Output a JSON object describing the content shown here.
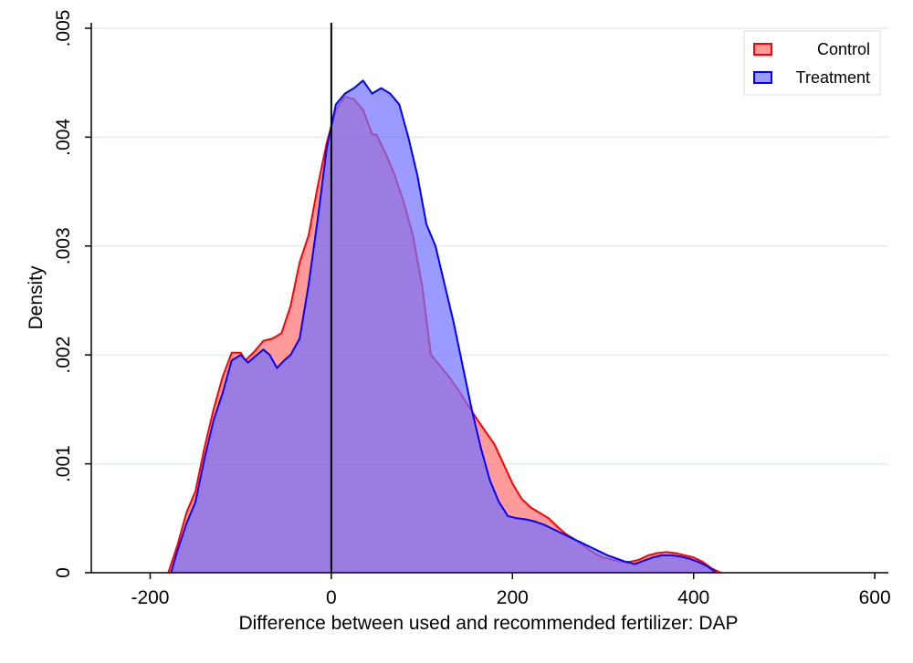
{
  "chart_data": {
    "type": "area",
    "xlabel": "Difference between used and recommended fertilizer: DAP",
    "ylabel": "Density",
    "xlim": [
      -265,
      615
    ],
    "ylim": [
      0,
      0.00505
    ],
    "x_ticks": [
      -200,
      0,
      200,
      400,
      600
    ],
    "x_tick_labels": [
      "-200",
      "0",
      "200",
      "400",
      "600"
    ],
    "y_ticks": [
      0,
      0.001,
      0.002,
      0.003,
      0.004,
      0.005
    ],
    "y_tick_labels": [
      "0",
      ".001",
      ".002",
      ".003",
      ".004",
      ".005"
    ],
    "grid": "horizontal",
    "legend_position": "top-right",
    "reference_line_x": 0,
    "series": [
      {
        "name": "Control",
        "line_color": "#ff0000",
        "fill_color": "#ff6f6f",
        "fill_opacity": 0.7,
        "points": [
          [
            -180,
            0
          ],
          [
            -170,
            0.00025
          ],
          [
            -160,
            0.00055
          ],
          [
            -150,
            0.00075
          ],
          [
            -140,
            0.00115
          ],
          [
            -130,
            0.0015
          ],
          [
            -120,
            0.0018
          ],
          [
            -110,
            0.00202
          ],
          [
            -100,
            0.00202
          ],
          [
            -95,
            0.00195
          ],
          [
            -85,
            0.00203
          ],
          [
            -75,
            0.00213
          ],
          [
            -65,
            0.00215
          ],
          [
            -55,
            0.0022
          ],
          [
            -45,
            0.00245
          ],
          [
            -35,
            0.00285
          ],
          [
            -25,
            0.0031
          ],
          [
            -15,
            0.00355
          ],
          [
            -5,
            0.00395
          ],
          [
            5,
            0.00425
          ],
          [
            15,
            0.00437
          ],
          [
            25,
            0.00435
          ],
          [
            35,
            0.00425
          ],
          [
            45,
            0.00403
          ],
          [
            50,
            0.00402
          ],
          [
            60,
            0.00385
          ],
          [
            70,
            0.00365
          ],
          [
            80,
            0.0034
          ],
          [
            90,
            0.0031
          ],
          [
            100,
            0.00265
          ],
          [
            110,
            0.002
          ],
          [
            120,
            0.0019
          ],
          [
            130,
            0.0018
          ],
          [
            140,
            0.00168
          ],
          [
            150,
            0.00155
          ],
          [
            160,
            0.00142
          ],
          [
            170,
            0.0013
          ],
          [
            180,
            0.00118
          ],
          [
            190,
            0.001
          ],
          [
            200,
            0.00082
          ],
          [
            210,
            0.00068
          ],
          [
            220,
            0.0006
          ],
          [
            230,
            0.00055
          ],
          [
            240,
            0.0005
          ],
          [
            250,
            0.00042
          ],
          [
            260,
            0.00035
          ],
          [
            270,
            0.0003
          ],
          [
            280,
            0.00024
          ],
          [
            290,
            0.00018
          ],
          [
            300,
            0.00014
          ],
          [
            310,
            0.00012
          ],
          [
            320,
            0.0001
          ],
          [
            330,
            0.0001
          ],
          [
            340,
            0.00012
          ],
          [
            350,
            0.00016
          ],
          [
            360,
            0.00018
          ],
          [
            370,
            0.00019
          ],
          [
            380,
            0.00018
          ],
          [
            390,
            0.00016
          ],
          [
            400,
            0.00014
          ],
          [
            410,
            0.0001
          ],
          [
            420,
            4e-05
          ],
          [
            430,
            0
          ]
        ]
      },
      {
        "name": "Treatment",
        "line_color": "#0000ff",
        "fill_color": "#7070ff",
        "fill_opacity": 0.7,
        "points": [
          [
            -177,
            0
          ],
          [
            -170,
            0.0002
          ],
          [
            -160,
            0.00045
          ],
          [
            -150,
            0.00065
          ],
          [
            -140,
            0.00105
          ],
          [
            -130,
            0.0014
          ],
          [
            -120,
            0.00165
          ],
          [
            -110,
            0.00195
          ],
          [
            -100,
            0.002
          ],
          [
            -92,
            0.00193
          ],
          [
            -85,
            0.00198
          ],
          [
            -75,
            0.00205
          ],
          [
            -68,
            0.002
          ],
          [
            -60,
            0.00188
          ],
          [
            -52,
            0.00195
          ],
          [
            -45,
            0.002
          ],
          [
            -35,
            0.00215
          ],
          [
            -25,
            0.00265
          ],
          [
            -15,
            0.00325
          ],
          [
            -5,
            0.0039
          ],
          [
            5,
            0.0043
          ],
          [
            15,
            0.0044
          ],
          [
            25,
            0.00445
          ],
          [
            35,
            0.00452
          ],
          [
            45,
            0.0044
          ],
          [
            55,
            0.00445
          ],
          [
            65,
            0.0044
          ],
          [
            75,
            0.0043
          ],
          [
            85,
            0.004
          ],
          [
            95,
            0.00365
          ],
          [
            105,
            0.0032
          ],
          [
            115,
            0.003
          ],
          [
            125,
            0.00265
          ],
          [
            135,
            0.0023
          ],
          [
            145,
            0.0019
          ],
          [
            155,
            0.0015
          ],
          [
            165,
            0.00115
          ],
          [
            175,
            0.00085
          ],
          [
            185,
            0.00065
          ],
          [
            195,
            0.00052
          ],
          [
            205,
            0.0005
          ],
          [
            215,
            0.00049
          ],
          [
            225,
            0.00047
          ],
          [
            235,
            0.00044
          ],
          [
            245,
            0.0004
          ],
          [
            255,
            0.00036
          ],
          [
            265,
            0.00032
          ],
          [
            275,
            0.00028
          ],
          [
            285,
            0.00024
          ],
          [
            295,
            0.0002
          ],
          [
            305,
            0.00016
          ],
          [
            315,
            0.00013
          ],
          [
            325,
            0.0001
          ],
          [
            335,
            8e-05
          ],
          [
            345,
            0.00011
          ],
          [
            355,
            0.00014
          ],
          [
            365,
            0.00016
          ],
          [
            375,
            0.00016
          ],
          [
            385,
            0.00015
          ],
          [
            395,
            0.00013
          ],
          [
            405,
            0.0001
          ],
          [
            415,
            6e-05
          ],
          [
            425,
            0
          ]
        ]
      }
    ]
  }
}
